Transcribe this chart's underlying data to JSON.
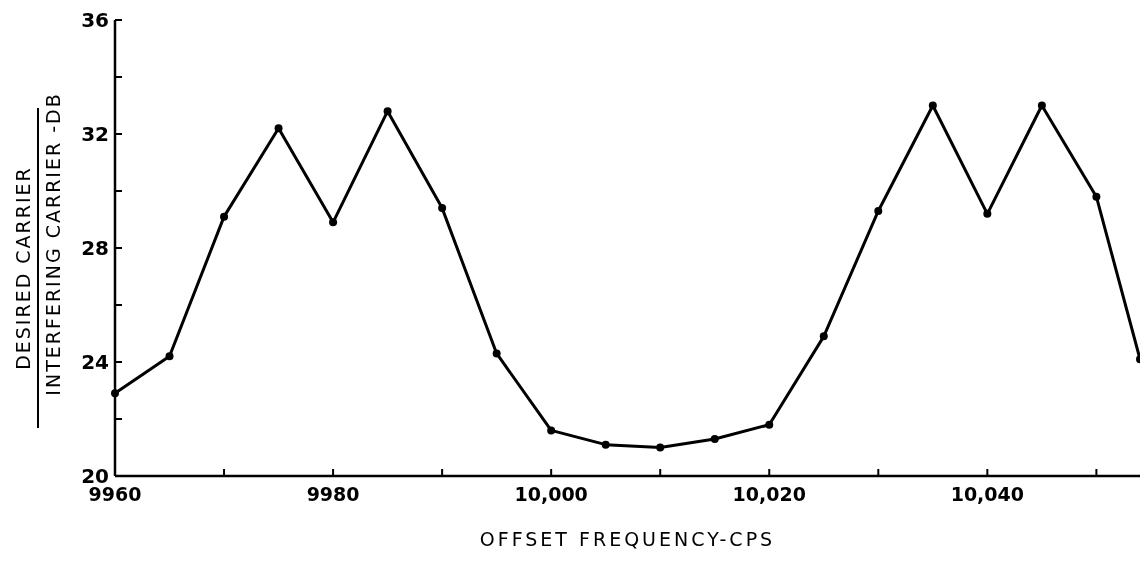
{
  "chart_data": {
    "type": "line",
    "xlabel": "OFFSET FREQUENCY-CPS",
    "ylabel": "DESIRED CARRIER INTERFERING CARRIER -DB",
    "x": [
      9960,
      9965,
      9970,
      9975,
      9980,
      9985,
      9990,
      9995,
      10000,
      10005,
      10010,
      10015,
      10020,
      10025,
      10030,
      10035,
      10040,
      10045,
      10050,
      10054
    ],
    "series": [
      {
        "color": "#000000",
        "values": [
          22.9,
          24.2,
          29.1,
          32.2,
          28.9,
          32.8,
          29.4,
          24.3,
          21.6,
          21.1,
          21.0,
          21.3,
          21.8,
          24.9,
          29.3,
          33.0,
          29.2,
          33.0,
          29.8,
          24.1
        ]
      }
    ],
    "xlim": [
      9960,
      10054
    ],
    "ylim": [
      20,
      36
    ],
    "xticks": [
      9960,
      {
        "value": 9970,
        "label": null
      },
      9980,
      {
        "value": 9990,
        "label": null
      },
      {
        "value": 10000,
        "label": "10,000"
      },
      {
        "value": 10010,
        "label": null
      },
      {
        "value": 10020,
        "label": "10,020"
      },
      {
        "value": 10030,
        "label": null
      },
      {
        "value": 10040,
        "label": "10,040"
      },
      {
        "value": 10050,
        "label": null
      }
    ],
    "yticks": [
      20,
      {
        "value": 22,
        "label": null
      },
      24,
      {
        "value": 26,
        "label": null
      },
      28,
      {
        "value": 30,
        "label": null
      },
      32,
      {
        "value": 34,
        "label": null
      },
      36
    ],
    "marker": "circle",
    "line_style": "solid",
    "grid": false
  }
}
